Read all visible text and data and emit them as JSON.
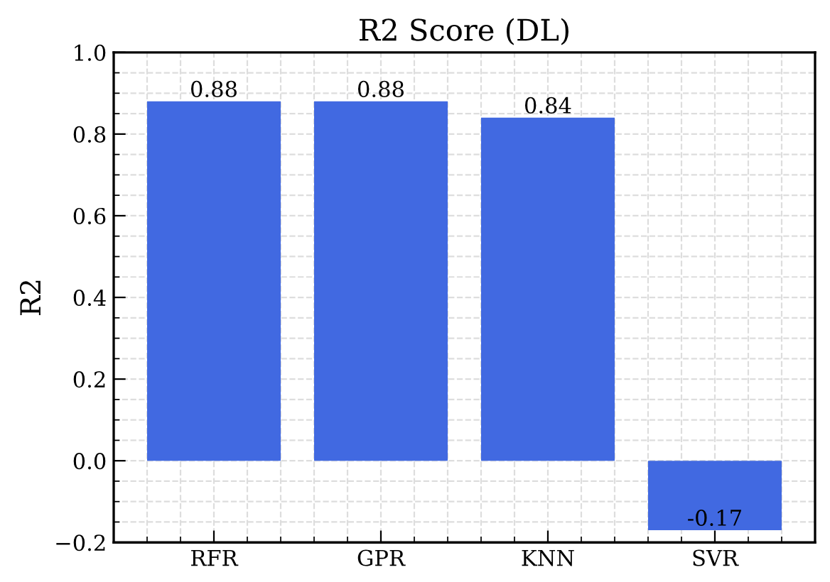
{
  "chart_data": {
    "type": "bar",
    "title": "R2 Score (DL)",
    "ylabel": "R2",
    "categories": [
      "RFR",
      "GPR",
      "KNN",
      "SVR"
    ],
    "values": [
      0.88,
      0.88,
      0.84,
      -0.17
    ],
    "color": "#4169e1",
    "ylim": [
      -0.2,
      1.0
    ],
    "yticks": [
      {
        "value": -0.2,
        "label": "−0.2"
      },
      {
        "value": 0.0,
        "label": "0.0"
      },
      {
        "value": 0.2,
        "label": "0.2"
      },
      {
        "value": 0.4,
        "label": "0.4"
      },
      {
        "value": 0.6,
        "label": "0.6"
      },
      {
        "value": 0.8,
        "label": "0.8"
      },
      {
        "value": 1.0,
        "label": "1.0"
      }
    ],
    "grid": true,
    "data_labels": true
  }
}
